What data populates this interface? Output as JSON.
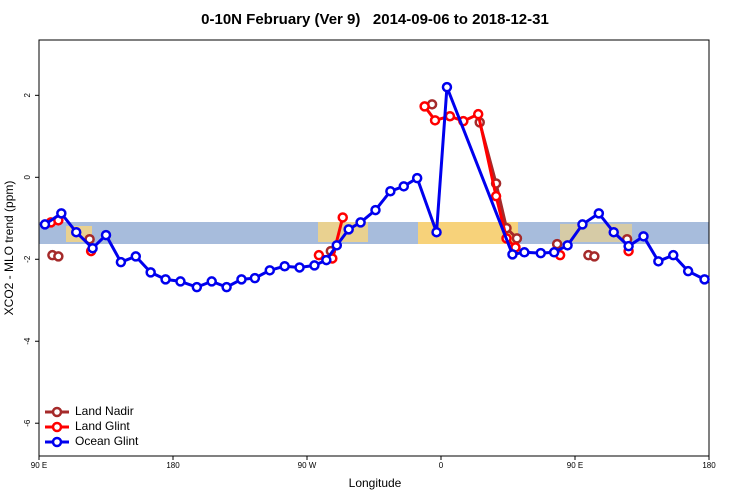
{
  "chart_data": {
    "type": "line",
    "title": "0-10N February (Ver 9)   2014-09-06 to 2018-12-31",
    "x_label": "Longitude",
    "y_label": "XCO2 - MLO trend (ppm)",
    "xlim": [
      90,
      540
    ],
    "ylim": [
      -6.8,
      3.35
    ],
    "xticks": [
      {
        "value": 90,
        "label": "90 E"
      },
      180,
      {
        "value": 270,
        "label": "90 W"
      },
      {
        "value": 360,
        "label": "0"
      },
      {
        "value": 450,
        "label": "90 E"
      },
      {
        "value": 540,
        "label": "180"
      }
    ],
    "yticks": [
      -6,
      -4,
      -2,
      0,
      2
    ],
    "legend": "bottom-left",
    "series": [
      {
        "name": "Land Nadir",
        "color": "#a52a2a",
        "x": [
          99,
          103,
          null,
          124,
          null,
          286,
          null,
          354,
          null,
          386,
          397,
          404,
          411,
          null,
          438,
          null,
          459,
          463,
          null,
          485
        ],
        "values": [
          -1.9,
          -1.93,
          null,
          -1.51,
          null,
          -1.8,
          null,
          1.78,
          null,
          1.34,
          -0.15,
          -1.24,
          -1.49,
          null,
          -1.63,
          null,
          -1.9,
          -1.93,
          null,
          -1.51
        ]
      },
      {
        "name": "Land Glint",
        "color": "#ff0000",
        "x": [
          98,
          103,
          null,
          125,
          null,
          278,
          287,
          294,
          null,
          349,
          356,
          366,
          375,
          385,
          397,
          404,
          410,
          null,
          440,
          null,
          486
        ],
        "values": [
          -1.1,
          -1.05,
          null,
          -1.8,
          null,
          -1.9,
          -1.98,
          -0.98,
          null,
          1.73,
          1.39,
          1.49,
          1.37,
          1.54,
          -0.46,
          -1.49,
          -1.71,
          null,
          -1.9,
          null,
          -1.8
        ]
      },
      {
        "name": "Ocean Glint",
        "color": "#0000ee",
        "x": [
          94,
          105,
          115,
          126,
          135,
          145,
          155,
          165,
          175,
          185,
          196,
          206,
          216,
          226,
          235,
          245,
          255,
          265,
          275,
          283,
          290,
          298,
          306,
          316,
          326,
          335,
          344,
          357,
          364,
          408,
          416,
          427,
          436,
          445,
          455,
          466,
          476,
          486,
          496,
          506,
          516,
          526,
          537
        ],
        "values": [
          -1.15,
          -0.88,
          -1.34,
          -1.73,
          -1.41,
          -2.07,
          -1.93,
          -2.32,
          -2.49,
          -2.54,
          -2.68,
          -2.54,
          -2.68,
          -2.49,
          -2.46,
          -2.27,
          -2.17,
          -2.2,
          -2.15,
          -2.02,
          -1.66,
          -1.27,
          -1.1,
          -0.8,
          -0.34,
          -0.22,
          -0.02,
          -1.34,
          2.2,
          -1.88,
          -1.83,
          -1.85,
          -1.83,
          -1.66,
          -1.15,
          -0.88,
          -1.34,
          -1.68,
          -1.44,
          -2.05,
          -1.9,
          -2.29,
          -2.49
        ]
      }
    ]
  }
}
